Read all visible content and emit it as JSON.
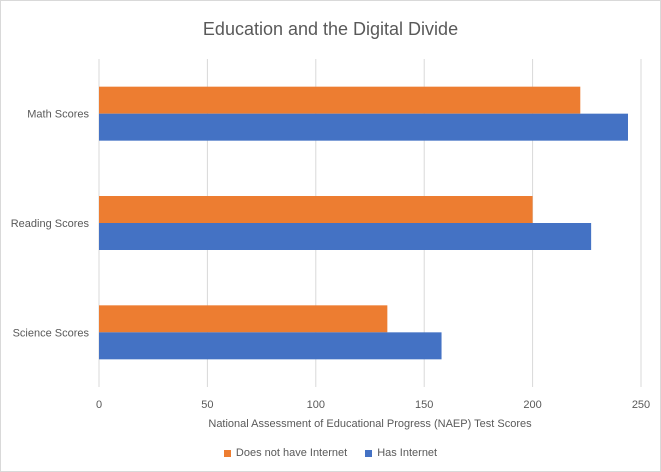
{
  "chart_data": {
    "type": "bar",
    "orientation": "horizontal",
    "title": "Education and the Digital Divide",
    "xlabel": "National Assessment of Educational Progress (NAEP) Test Scores",
    "ylabel": "",
    "xlim": [
      0,
      250
    ],
    "x_ticks": [
      0,
      50,
      100,
      150,
      200,
      250
    ],
    "categories": [
      "Math Scores",
      "Reading Scores",
      "Science Scores"
    ],
    "series": [
      {
        "name": "Does not have Internet",
        "color": "#ED7D31",
        "values": [
          222,
          200,
          133
        ]
      },
      {
        "name": "Has Internet",
        "color": "#4472C4",
        "values": [
          244,
          227,
          158
        ]
      }
    ],
    "grid": "vertical",
    "legend": "bottom"
  }
}
